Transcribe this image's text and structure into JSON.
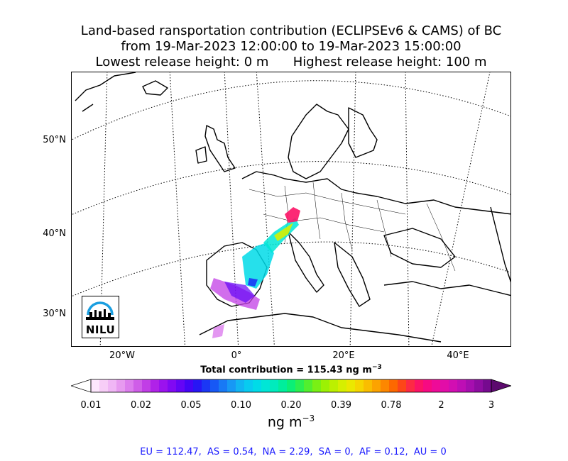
{
  "title": {
    "line1": "Land-based ransportation contribution (ECLIPSEv6 & CAMS) of BC",
    "line2": "from 19-Mar-2023 12:00:00 to 19-Mar-2023 15:00:00",
    "line3": "Lowest release height: 0 m      Highest release height: 100 m"
  },
  "map": {
    "lat_labels": [
      "50°N",
      "40°N",
      "30°N"
    ],
    "lon_labels": [
      "20°W",
      "0°",
      "20°E",
      "40°E"
    ],
    "logo_text": "NILU"
  },
  "total": {
    "prefix": "Total contribution = 115.43 ng m",
    "exponent": "−3"
  },
  "colorbar": {
    "tick_labels": [
      "0.01",
      "0.02",
      "0.05",
      "0.10",
      "0.20",
      "0.39",
      "0.78",
      "2",
      "3"
    ],
    "colors": [
      "#fde7fd",
      "#f7cdf7",
      "#f0b6f5",
      "#e79af0",
      "#dc7ded",
      "#cf5ee8",
      "#c13ee6",
      "#b022e8",
      "#9b12ee",
      "#8109f3",
      "#6405f6",
      "#4405f6",
      "#2716f5",
      "#1b37f5",
      "#1758f5",
      "#1879f5",
      "#1798f5",
      "#11b5f2",
      "#08cbf0",
      "#00dbe8",
      "#00e6d6",
      "#00ebbd",
      "#00ee9c",
      "#0bef76",
      "#2bef4f",
      "#52ef2e",
      "#79f014",
      "#9cf104",
      "#bcf000",
      "#d6ef00",
      "#ebe800",
      "#f6d500",
      "#fabd00",
      "#fca300",
      "#fd8700",
      "#fd6800",
      "#fd4618",
      "#fd2a44",
      "#fc1366",
      "#f70a82",
      "#ee0b98",
      "#e20da8",
      "#d20eb2",
      "#be0eb5",
      "#a60eaf",
      "#8e0ca1",
      "#760a8f"
    ],
    "under_color": "#ffffff",
    "over_color": "#5c0a6e"
  },
  "unit": {
    "base": "ng m",
    "exponent": "−3"
  },
  "regions_text": "EU = 112.47,  AS = 0.54,  NA = 2.29,  SA = 0,  AF = 0.12,  AU = 0",
  "chart_data": {
    "type": "heatmap",
    "title": "Land-based ransportation contribution (ECLIPSEv6 & CAMS) of BC",
    "period": "from 19-Mar-2023 12:00:00 to 19-Mar-2023 15:00:00",
    "release_heights": "Lowest release height: 0 m      Highest release height: 100 m",
    "colorbar_ticks": [
      0.01,
      0.02,
      0.05,
      0.1,
      0.2,
      0.39,
      0.78,
      2,
      3
    ],
    "colorbar_unit": "ng m−3",
    "total_contribution": 115.43,
    "regional_contributions": {
      "EU": 112.47,
      "AS": 0.54,
      "NA": 2.29,
      "SA": 0,
      "AF": 0.12,
      "AU": 0
    }
  }
}
